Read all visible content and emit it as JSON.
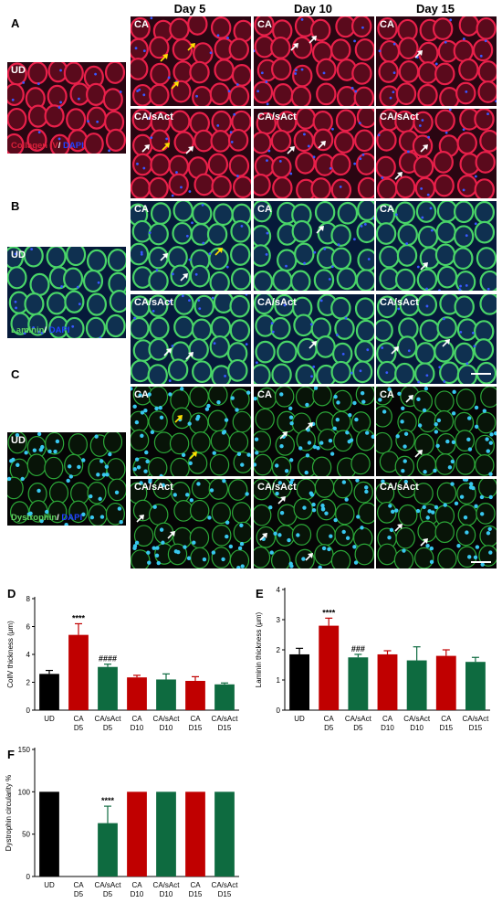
{
  "figure": {
    "panel_letters": [
      "A",
      "B",
      "C",
      "D",
      "E",
      "F"
    ],
    "day_headers": [
      "Day 5",
      "Day 10",
      "Day 15"
    ],
    "row_labels": {
      "ud": "UD",
      "ca": "CA",
      "casact": "CA/sAct"
    },
    "stains": {
      "A": {
        "marker": "Collagen IV",
        "sep": "/ ",
        "dapi": "DAPI"
      },
      "B": {
        "marker": "Laminin",
        "sep": "/ ",
        "dapi": "DAPI"
      },
      "C": {
        "marker": "Dystrophin",
        "sep": "/ ",
        "dapi": "DAPI"
      }
    },
    "colors": {
      "red": "#c00000",
      "green": "#0e6b40",
      "black": "#000000",
      "collagen": "#d8203a",
      "laminin": "#5fd060",
      "dapi": "#2040ff",
      "arrow_white": "#ffffff",
      "arrow_yellow": "#ffe000"
    }
  },
  "chart_data": [
    {
      "panel": "D",
      "type": "bar",
      "ylabel": "CollV thickness (μm)",
      "ylim": [
        0,
        8
      ],
      "yticks": [
        "0",
        "2",
        "4",
        "6",
        "8"
      ],
      "categories": [
        [
          "UD"
        ],
        [
          "CA",
          "D5"
        ],
        [
          "CA/sAct",
          "D5"
        ],
        [
          "CA",
          "D10"
        ],
        [
          "CA/sAct",
          "D10"
        ],
        [
          "CA",
          "D15"
        ],
        [
          "CA/sAct",
          "D15"
        ]
      ],
      "values": [
        2.6,
        5.4,
        3.1,
        2.35,
        2.2,
        2.1,
        1.85
      ],
      "errors": [
        0.25,
        0.8,
        0.2,
        0.15,
        0.4,
        0.3,
        0.1
      ],
      "colors": [
        "black",
        "red",
        "green",
        "red",
        "green",
        "red",
        "green"
      ],
      "annotations": [
        "",
        "****",
        "####",
        "",
        "",
        "",
        ""
      ]
    },
    {
      "panel": "E",
      "type": "bar",
      "ylabel": "Laminin thickness (μm)",
      "ylim": [
        0,
        4
      ],
      "yticks": [
        "0",
        "1",
        "2",
        "3",
        "4"
      ],
      "categories": [
        [
          "UD"
        ],
        [
          "CA",
          "D5"
        ],
        [
          "CA/sAct",
          "D5"
        ],
        [
          "CA",
          "D10"
        ],
        [
          "CA/sAct",
          "D10"
        ],
        [
          "CA",
          "D15"
        ],
        [
          "CA/sAct",
          "D15"
        ]
      ],
      "values": [
        1.85,
        2.8,
        1.75,
        1.85,
        1.65,
        1.8,
        1.6
      ],
      "errors": [
        0.2,
        0.25,
        0.1,
        0.12,
        0.45,
        0.2,
        0.15
      ],
      "colors": [
        "black",
        "red",
        "green",
        "red",
        "green",
        "red",
        "green"
      ],
      "annotations": [
        "",
        "****",
        "###",
        "",
        "",
        "",
        ""
      ]
    },
    {
      "panel": "F",
      "type": "bar",
      "ylabel": "Dystrophin circularity %",
      "ylim": [
        0,
        150
      ],
      "yticks": [
        "0",
        "50",
        "100",
        "150"
      ],
      "categories": [
        [
          "UD"
        ],
        [
          "CA",
          "D5"
        ],
        [
          "CA/sAct",
          "D5"
        ],
        [
          "CA",
          "D10"
        ],
        [
          "CA/sAct",
          "D10"
        ],
        [
          "CA",
          "D15"
        ],
        [
          "CA/sAct",
          "D15"
        ]
      ],
      "values": [
        100,
        0,
        63,
        100,
        100,
        100,
        100
      ],
      "errors": [
        0,
        0,
        20,
        0,
        0,
        0,
        0
      ],
      "colors": [
        "black",
        "red",
        "green",
        "red",
        "green",
        "red",
        "green"
      ],
      "annotations": [
        "",
        "",
        "****",
        "",
        "",
        "",
        ""
      ]
    }
  ]
}
